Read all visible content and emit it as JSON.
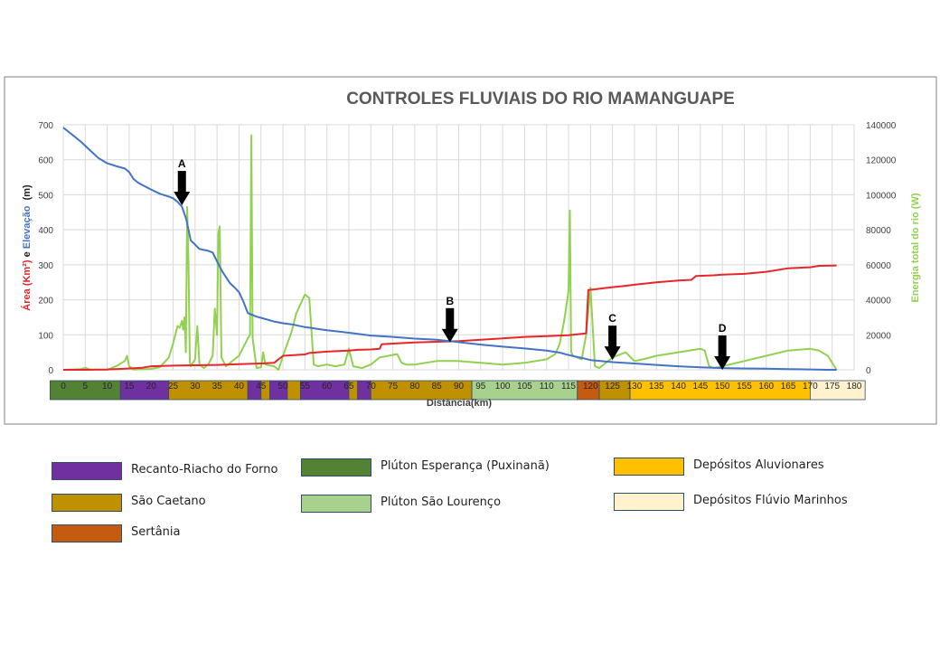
{
  "chart_data": {
    "type": "line",
    "title": "CONTROLES FLUVIAIS DO RIO MAMANGUAPE",
    "xlabel": "Distância(km)",
    "ylabel_left_parts": [
      "Área (Km²)",
      " e ",
      "Elevação",
      "  (m)"
    ],
    "ylabel_right": "Energia total do rio (W)",
    "xlim": [
      0,
      180
    ],
    "ylim_left": [
      0,
      700
    ],
    "ylim_right": [
      0,
      140000
    ],
    "x_ticks": [
      "0",
      "5",
      "10",
      "15",
      "20",
      "25",
      "30",
      "35",
      "40",
      "45",
      "50",
      "55",
      "60",
      "65",
      "70",
      "75",
      "80",
      "85",
      "90",
      "95",
      "100",
      "105",
      "110",
      "115",
      "120",
      "125",
      "130",
      "135",
      "140",
      "145",
      "150",
      "155",
      "160",
      "165",
      "170",
      "175",
      "180"
    ],
    "y_left_ticks": [
      "0",
      "100",
      "200",
      "300",
      "400",
      "500",
      "600",
      "700"
    ],
    "y_right_ticks": [
      "0",
      "20000",
      "40000",
      "60000",
      "80000",
      "100000",
      "120000",
      "140000"
    ],
    "gridlines": true,
    "series": [
      {
        "name": "Elevação",
        "color": "#4472c4",
        "axis": "left",
        "points": [
          [
            0,
            692
          ],
          [
            2,
            672
          ],
          [
            4,
            652
          ],
          [
            6,
            628
          ],
          [
            8,
            605
          ],
          [
            10,
            590
          ],
          [
            12,
            582
          ],
          [
            14,
            575
          ],
          [
            15,
            565
          ],
          [
            16,
            545
          ],
          [
            17,
            535
          ],
          [
            18,
            528
          ],
          [
            20,
            515
          ],
          [
            22,
            503
          ],
          [
            24,
            495
          ],
          [
            25,
            490
          ],
          [
            26,
            480
          ],
          [
            27,
            466
          ],
          [
            28,
            430
          ],
          [
            29,
            370
          ],
          [
            30,
            358
          ],
          [
            31,
            345
          ],
          [
            33,
            340
          ],
          [
            34,
            335
          ],
          [
            35,
            310
          ],
          [
            36,
            285
          ],
          [
            37,
            265
          ],
          [
            38,
            247
          ],
          [
            39,
            235
          ],
          [
            40,
            222
          ],
          [
            41,
            195
          ],
          [
            42,
            162
          ],
          [
            44,
            152
          ],
          [
            46,
            145
          ],
          [
            48,
            138
          ],
          [
            50,
            133
          ],
          [
            52,
            130
          ],
          [
            55,
            122
          ],
          [
            60,
            113
          ],
          [
            65,
            106
          ],
          [
            70,
            98
          ],
          [
            75,
            94
          ],
          [
            80,
            89
          ],
          [
            85,
            86
          ],
          [
            90,
            79
          ],
          [
            95,
            72
          ],
          [
            100,
            66
          ],
          [
            105,
            61
          ],
          [
            110,
            55
          ],
          [
            113,
            49
          ],
          [
            115,
            42
          ],
          [
            118,
            34
          ],
          [
            120,
            28
          ],
          [
            125,
            22
          ],
          [
            130,
            18
          ],
          [
            135,
            14
          ],
          [
            140,
            10
          ],
          [
            145,
            7
          ],
          [
            150,
            5
          ],
          [
            155,
            4
          ],
          [
            160,
            3
          ],
          [
            165,
            2
          ],
          [
            170,
            1
          ],
          [
            174,
            0
          ],
          [
            176,
            0
          ]
        ]
      },
      {
        "name": "Área",
        "color": "#e8262a",
        "axis": "left",
        "points": [
          [
            0,
            0
          ],
          [
            5,
            0
          ],
          [
            10,
            1
          ],
          [
            12,
            2
          ],
          [
            15,
            4
          ],
          [
            18,
            6
          ],
          [
            20,
            10
          ],
          [
            25,
            12
          ],
          [
            30,
            13
          ],
          [
            35,
            14
          ],
          [
            40,
            16
          ],
          [
            45,
            18
          ],
          [
            48,
            20
          ],
          [
            50,
            40
          ],
          [
            55,
            44
          ],
          [
            56,
            48
          ],
          [
            60,
            52
          ],
          [
            65,
            55
          ],
          [
            67,
            57
          ],
          [
            70,
            58
          ],
          [
            72,
            60
          ],
          [
            72.5,
            73
          ],
          [
            75,
            75
          ],
          [
            80,
            78
          ],
          [
            85,
            80
          ],
          [
            90,
            82
          ],
          [
            95,
            86
          ],
          [
            100,
            90
          ],
          [
            105,
            94
          ],
          [
            110,
            96
          ],
          [
            115,
            99
          ],
          [
            119,
            104
          ],
          [
            119.5,
            228
          ],
          [
            121,
            230
          ],
          [
            123,
            233
          ],
          [
            125,
            236
          ],
          [
            128,
            240
          ],
          [
            130,
            243
          ],
          [
            135,
            250
          ],
          [
            140,
            255
          ],
          [
            143,
            257
          ],
          [
            144,
            268
          ],
          [
            148,
            270
          ],
          [
            150,
            272
          ],
          [
            155,
            274
          ],
          [
            160,
            280
          ],
          [
            165,
            290
          ],
          [
            170,
            293
          ],
          [
            172,
            297
          ],
          [
            176,
            298
          ]
        ]
      },
      {
        "name": "Energia",
        "color": "#92d050",
        "axis": "right",
        "points": [
          [
            0,
            0
          ],
          [
            4,
            400
          ],
          [
            5,
            1200
          ],
          [
            6,
            200
          ],
          [
            10,
            0
          ],
          [
            12,
            2000
          ],
          [
            14,
            5000
          ],
          [
            14.5,
            8000
          ],
          [
            15,
            2000
          ],
          [
            16,
            100
          ],
          [
            20,
            500
          ],
          [
            22,
            1500
          ],
          [
            24,
            7000
          ],
          [
            25,
            15000
          ],
          [
            26,
            25000
          ],
          [
            26.5,
            24000
          ],
          [
            27,
            28000
          ],
          [
            27.3,
            23000
          ],
          [
            27.6,
            30000
          ],
          [
            27.9,
            10000
          ],
          [
            28.2,
            93000
          ],
          [
            28.5,
            62000
          ],
          [
            28.8,
            5000
          ],
          [
            29,
            2000
          ],
          [
            30,
            6000
          ],
          [
            30.5,
            25000
          ],
          [
            31,
            3000
          ],
          [
            32,
            1000
          ],
          [
            33,
            3000
          ],
          [
            34,
            8000
          ],
          [
            34.5,
            35000
          ],
          [
            35,
            20000
          ],
          [
            35.3,
            78000
          ],
          [
            35.6,
            82000
          ],
          [
            36,
            7000
          ],
          [
            37,
            2000
          ],
          [
            40,
            8000
          ],
          [
            42,
            18000
          ],
          [
            42.5,
            20000
          ],
          [
            42.8,
            134000
          ],
          [
            43.1,
            18000
          ],
          [
            44,
            1000
          ],
          [
            45,
            1500
          ],
          [
            45.5,
            10000
          ],
          [
            46,
            3000
          ],
          [
            48,
            2000
          ],
          [
            49,
            0
          ],
          [
            50,
            8000
          ],
          [
            52,
            22000
          ],
          [
            53,
            32000
          ],
          [
            55,
            43000
          ],
          [
            56,
            41000
          ],
          [
            57,
            3000
          ],
          [
            58,
            2000
          ],
          [
            60,
            3000
          ],
          [
            62,
            2000
          ],
          [
            64,
            3000
          ],
          [
            65,
            12000
          ],
          [
            66,
            2000
          ],
          [
            68,
            1000
          ],
          [
            70,
            3000
          ],
          [
            72,
            7000
          ],
          [
            74,
            8000
          ],
          [
            76,
            9000
          ],
          [
            77,
            4000
          ],
          [
            78,
            3000
          ],
          [
            80,
            3000
          ],
          [
            85,
            5000
          ],
          [
            90,
            5000
          ],
          [
            95,
            4000
          ],
          [
            100,
            3000
          ],
          [
            105,
            4000
          ],
          [
            110,
            6000
          ],
          [
            112,
            9000
          ],
          [
            113,
            15000
          ],
          [
            114,
            28000
          ],
          [
            115,
            45000
          ],
          [
            115.3,
            91000
          ],
          [
            115.6,
            10000
          ],
          [
            116,
            8000
          ],
          [
            117,
            7000
          ],
          [
            118,
            6000
          ],
          [
            119,
            20000
          ],
          [
            120,
            47000
          ],
          [
            121,
            2000
          ],
          [
            122,
            1000
          ],
          [
            124,
            5000
          ],
          [
            125,
            7000
          ],
          [
            128,
            10000
          ],
          [
            130,
            5000
          ],
          [
            132,
            6000
          ],
          [
            135,
            8000
          ],
          [
            140,
            10000
          ],
          [
            145,
            12000
          ],
          [
            146,
            11000
          ],
          [
            147,
            2000
          ],
          [
            148,
            1000
          ],
          [
            150,
            2000
          ],
          [
            155,
            5000
          ],
          [
            160,
            8000
          ],
          [
            165,
            11000
          ],
          [
            170,
            12000
          ],
          [
            172,
            11000
          ],
          [
            174,
            8000
          ],
          [
            176,
            0
          ]
        ]
      }
    ],
    "annotations": [
      {
        "label": "A",
        "x": 27,
        "y": 470
      },
      {
        "label": "B",
        "x": 88,
        "y": 78
      },
      {
        "label": "C",
        "x": 125,
        "y": 28
      },
      {
        "label": "D",
        "x": 150,
        "y": 0
      }
    ],
    "geology_bar": [
      {
        "unit": "pluton_esperanca",
        "start": -3,
        "end": 13
      },
      {
        "unit": "recanto",
        "start": 13,
        "end": 24
      },
      {
        "unit": "sao_caetano",
        "start": 24,
        "end": 42
      },
      {
        "unit": "recanto",
        "start": 42,
        "end": 45
      },
      {
        "unit": "sao_caetano",
        "start": 45,
        "end": 47
      },
      {
        "unit": "recanto",
        "start": 47,
        "end": 51
      },
      {
        "unit": "sao_caetano",
        "start": 51,
        "end": 54
      },
      {
        "unit": "recanto",
        "start": 54,
        "end": 65
      },
      {
        "unit": "sao_caetano",
        "start": 65,
        "end": 67
      },
      {
        "unit": "recanto",
        "start": 67,
        "end": 70
      },
      {
        "unit": "sao_caetano",
        "start": 70,
        "end": 93
      },
      {
        "unit": "pluton_sao_lourenco",
        "start": 93,
        "end": 117
      },
      {
        "unit": "sertania",
        "start": 117,
        "end": 122
      },
      {
        "unit": "sao_caetano",
        "start": 122,
        "end": 129
      },
      {
        "unit": "aluvionares",
        "start": 129,
        "end": 170
      },
      {
        "unit": "fluvio_marinhos",
        "start": 170,
        "end": 182.5
      }
    ],
    "units": {
      "recanto": {
        "label": "Recanto-Riacho do Forno",
        "color": "#7030a0"
      },
      "pluton_esperanca": {
        "label": "Plúton Esperança (Puxinanã)",
        "color": "#548235"
      },
      "aluvionares": {
        "label": "Depósitos Aluvionares",
        "color": "#ffc000"
      },
      "sao_caetano": {
        "label": "São Caetano",
        "color": "#bf9000"
      },
      "pluton_sao_lourenco": {
        "label": "Plúton São Lourenço",
        "color": "#a9d18e"
      },
      "fluvio_marinhos": {
        "label": "Depósitos Flúvio Marinhos",
        "color": "#fff2cc"
      },
      "sertania": {
        "label": "Sertânia",
        "color": "#c55a11"
      }
    },
    "legend_order": [
      "recanto",
      "pluton_esperanca",
      "aluvionares",
      "sao_caetano",
      "pluton_sao_lourenco",
      "fluvio_marinhos",
      "sertania"
    ]
  }
}
